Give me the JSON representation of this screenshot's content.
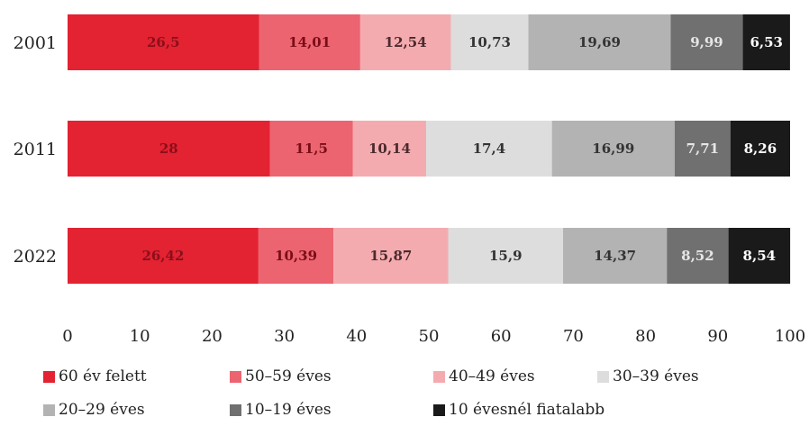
{
  "chart_data": {
    "type": "bar",
    "orientation": "horizontal",
    "stacked": true,
    "categories": [
      "2001",
      "2011",
      "2022"
    ],
    "series": [
      {
        "name": "60 év felett",
        "color": "#e32232",
        "label_color": "#8b0f1a",
        "values": [
          26.5,
          28,
          26.42
        ],
        "labels": [
          "26,5",
          "28",
          "26,42"
        ]
      },
      {
        "name": "50–59 éves",
        "color": "#ec6470",
        "label_color": "#7a0d16",
        "values": [
          14.01,
          11.5,
          10.39
        ],
        "labels": [
          "14,01",
          "11,5",
          "10,39"
        ]
      },
      {
        "name": "40–49 éves",
        "color": "#f4abb0",
        "label_color": "#4a2a2c",
        "values": [
          12.54,
          10.14,
          15.87
        ],
        "labels": [
          "12,54",
          "10,14",
          "15,87"
        ]
      },
      {
        "name": "30–39 éves",
        "color": "#dddddd",
        "label_color": "#333333",
        "values": [
          10.73,
          17.4,
          15.9
        ],
        "labels": [
          "10,73",
          "17,4",
          "15,9"
        ]
      },
      {
        "name": "20–29 éves",
        "color": "#b3b3b3",
        "label_color": "#333333",
        "values": [
          19.69,
          16.99,
          14.37
        ],
        "labels": [
          "19,69",
          "16,99",
          "14,37"
        ]
      },
      {
        "name": "10–19 éves",
        "color": "#707070",
        "label_color": "#e6e6e6",
        "values": [
          9.99,
          7.71,
          8.52
        ],
        "labels": [
          "9,99",
          "7,71",
          "8,52"
        ]
      },
      {
        "name": "10 évesnél fiatalabb",
        "color": "#1a1a1a",
        "label_color": "#ffffff",
        "values": [
          6.53,
          8.26,
          8.54
        ],
        "labels": [
          "6,53",
          "8,26",
          "8,54"
        ]
      }
    ],
    "xlim": [
      0,
      100
    ],
    "xticks": [
      "0",
      "10",
      "20",
      "30",
      "40",
      "50",
      "60",
      "70",
      "80",
      "90",
      "100"
    ],
    "grid": false,
    "legend_position": "bottom"
  }
}
